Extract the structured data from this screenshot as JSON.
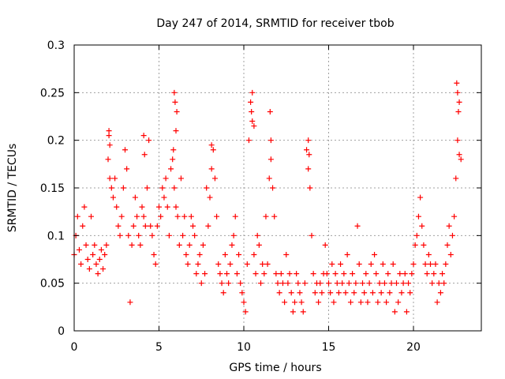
{
  "chart_data": {
    "type": "scatter",
    "title": "Day 247 of 2014, SRMTID for receiver tbob",
    "xlabel": "GPS time / hours",
    "ylabel": "SRMTID / TECUs",
    "xlim": [
      0,
      24
    ],
    "ylim": [
      0,
      0.3
    ],
    "xticks": [
      0,
      5,
      10,
      15,
      20
    ],
    "xtick_labels": [
      "0",
      "5",
      "10",
      "15",
      "20"
    ],
    "yticks": [
      0,
      0.05,
      0.1,
      0.15,
      0.2,
      0.25,
      0.3
    ],
    "ytick_labels": [
      "0",
      "0.05",
      "0.1",
      "0.15",
      "0.2",
      "0.25",
      "0.3"
    ],
    "grid": true,
    "marker": "+",
    "color": "#ff0000",
    "series": [
      {
        "name": "SRMTID",
        "x": [
          0.0,
          0.1,
          0.2,
          0.3,
          0.4,
          0.5,
          0.6,
          0.7,
          0.8,
          0.9,
          1.0,
          1.1,
          1.2,
          1.3,
          1.4,
          1.5,
          1.6,
          1.7,
          1.8,
          1.9,
          2.0,
          2.05,
          2.1,
          2.2,
          2.3,
          2.4,
          2.5,
          2.6,
          2.7,
          2.8,
          2.9,
          3.0,
          3.1,
          3.2,
          3.3,
          3.4,
          3.5,
          3.6,
          3.7,
          3.8,
          3.9,
          4.0,
          4.1,
          4.2,
          4.3,
          4.4,
          4.5,
          4.6,
          4.7,
          4.8,
          4.9,
          5.0,
          5.1,
          5.2,
          5.3,
          5.4,
          5.5,
          5.6,
          5.7,
          5.8,
          5.85,
          5.9,
          6.0,
          6.1,
          6.2,
          6.3,
          6.4,
          6.5,
          6.6,
          6.7,
          6.8,
          6.9,
          7.0,
          7.1,
          7.2,
          7.3,
          7.4,
          7.5,
          7.6,
          7.7,
          7.8,
          7.9,
          8.0,
          8.1,
          8.2,
          8.3,
          8.4,
          8.5,
          8.6,
          8.7,
          8.8,
          8.9,
          9.0,
          9.1,
          9.2,
          9.3,
          9.4,
          9.5,
          9.6,
          9.7,
          9.8,
          9.9,
          10.0,
          10.1,
          10.2,
          10.3,
          10.4,
          10.5,
          10.6,
          10.7,
          10.8,
          10.9,
          11.0,
          11.1,
          11.2,
          11.3,
          11.4,
          11.5,
          11.6,
          11.7,
          11.8,
          11.9,
          12.0,
          12.1,
          12.2,
          12.3,
          12.4,
          12.5,
          12.6,
          12.7,
          12.8,
          12.9,
          13.0,
          13.1,
          13.2,
          13.3,
          13.4,
          13.5,
          13.6,
          13.7,
          13.8,
          13.9,
          14.0,
          14.1,
          14.2,
          14.3,
          14.4,
          14.5,
          14.6,
          14.7,
          14.8,
          14.9,
          15.0,
          15.1,
          15.2,
          15.3,
          15.4,
          15.5,
          15.6,
          15.7,
          15.8,
          15.9,
          16.0,
          16.1,
          16.2,
          16.3,
          16.4,
          16.5,
          16.6,
          16.7,
          16.8,
          16.9,
          17.0,
          17.1,
          17.2,
          17.3,
          17.4,
          17.5,
          17.6,
          17.7,
          17.8,
          17.9,
          18.0,
          18.1,
          18.2,
          18.3,
          18.4,
          18.5,
          18.6,
          18.7,
          18.8,
          18.9,
          19.0,
          19.1,
          19.2,
          19.3,
          19.4,
          19.5,
          19.6,
          19.7,
          19.8,
          19.9,
          20.0,
          20.1,
          20.2,
          20.3,
          20.4,
          20.5,
          20.6,
          20.7,
          20.8,
          20.9,
          21.0,
          21.1,
          21.2,
          21.3,
          21.4,
          21.5,
          21.6,
          21.7,
          21.8,
          21.9,
          22.0,
          22.1,
          22.2,
          22.3,
          22.4,
          22.5,
          22.6,
          22.7,
          22.8,
          5.9,
          5.95,
          6.0,
          6.05,
          10.5,
          10.6,
          10.45,
          13.8,
          13.85,
          22.55,
          22.6,
          22.65,
          22.7,
          11.55,
          11.6,
          8.1,
          4.1,
          4.15,
          2.05,
          2.1
        ],
        "y": [
          0.08,
          0.1,
          0.12,
          0.085,
          0.07,
          0.11,
          0.13,
          0.09,
          0.075,
          0.065,
          0.12,
          0.08,
          0.09,
          0.07,
          0.06,
          0.075,
          0.085,
          0.065,
          0.08,
          0.09,
          0.18,
          0.21,
          0.16,
          0.15,
          0.14,
          0.16,
          0.13,
          0.11,
          0.1,
          0.12,
          0.15,
          0.19,
          0.17,
          0.1,
          0.03,
          0.09,
          0.11,
          0.14,
          0.12,
          0.1,
          0.09,
          0.13,
          0.12,
          0.11,
          0.15,
          0.2,
          0.11,
          0.1,
          0.08,
          0.07,
          0.11,
          0.13,
          0.12,
          0.15,
          0.14,
          0.16,
          0.13,
          0.1,
          0.17,
          0.18,
          0.19,
          0.15,
          0.13,
          0.12,
          0.09,
          0.16,
          0.1,
          0.12,
          0.08,
          0.07,
          0.09,
          0.12,
          0.11,
          0.1,
          0.06,
          0.07,
          0.08,
          0.05,
          0.09,
          0.06,
          0.15,
          0.11,
          0.14,
          0.17,
          0.19,
          0.16,
          0.12,
          0.07,
          0.06,
          0.05,
          0.04,
          0.08,
          0.06,
          0.05,
          0.07,
          0.09,
          0.1,
          0.12,
          0.06,
          0.08,
          0.05,
          0.04,
          0.03,
          0.02,
          0.07,
          0.2,
          0.24,
          0.22,
          0.08,
          0.06,
          0.1,
          0.09,
          0.05,
          0.07,
          0.06,
          0.12,
          0.07,
          0.16,
          0.18,
          0.15,
          0.12,
          0.06,
          0.05,
          0.04,
          0.06,
          0.05,
          0.03,
          0.08,
          0.05,
          0.06,
          0.04,
          0.02,
          0.03,
          0.06,
          0.05,
          0.04,
          0.03,
          0.02,
          0.05,
          0.19,
          0.17,
          0.15,
          0.1,
          0.06,
          0.04,
          0.05,
          0.03,
          0.05,
          0.04,
          0.06,
          0.09,
          0.06,
          0.05,
          0.04,
          0.07,
          0.03,
          0.06,
          0.05,
          0.04,
          0.07,
          0.05,
          0.06,
          0.04,
          0.08,
          0.05,
          0.03,
          0.06,
          0.04,
          0.05,
          0.11,
          0.07,
          0.03,
          0.05,
          0.04,
          0.06,
          0.03,
          0.05,
          0.07,
          0.04,
          0.08,
          0.06,
          0.03,
          0.05,
          0.04,
          0.07,
          0.05,
          0.03,
          0.06,
          0.04,
          0.05,
          0.07,
          0.02,
          0.05,
          0.03,
          0.06,
          0.04,
          0.05,
          0.06,
          0.02,
          0.05,
          0.04,
          0.06,
          0.07,
          0.09,
          0.1,
          0.12,
          0.14,
          0.11,
          0.09,
          0.07,
          0.06,
          0.08,
          0.07,
          0.05,
          0.06,
          0.07,
          0.03,
          0.05,
          0.04,
          0.06,
          0.05,
          0.07,
          0.09,
          0.11,
          0.08,
          0.1,
          0.12,
          0.16,
          0.2,
          0.24,
          0.18,
          0.25,
          0.24,
          0.21,
          0.23,
          0.25,
          0.215,
          0.23,
          0.2,
          0.185,
          0.26,
          0.25,
          0.23,
          0.185,
          0.23,
          0.2,
          0.195,
          0.205,
          0.185,
          0.205,
          0.195
        ]
      }
    ]
  }
}
